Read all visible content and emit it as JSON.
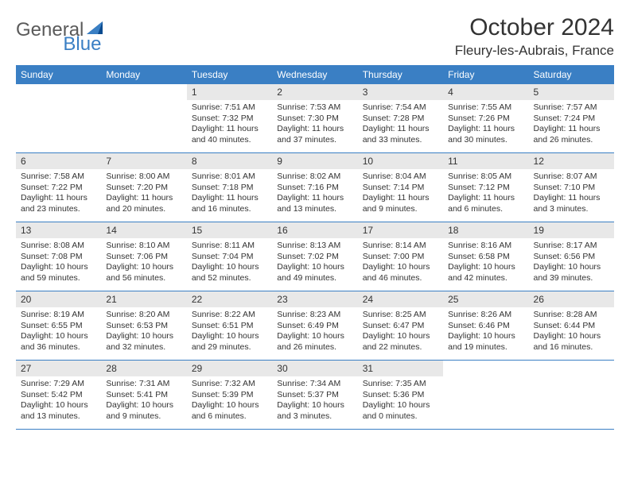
{
  "logo": {
    "text1": "General",
    "text2": "Blue"
  },
  "header": {
    "month_title": "October 2024",
    "location": "Fleury-les-Aubrais, France"
  },
  "colors": {
    "header_bg": "#3a7fc4",
    "day_num_bg": "#e8e8e8",
    "text": "#333333",
    "logo_gray": "#5a5a5a",
    "logo_blue": "#3a7fc4"
  },
  "weekdays": [
    "Sunday",
    "Monday",
    "Tuesday",
    "Wednesday",
    "Thursday",
    "Friday",
    "Saturday"
  ],
  "weeks": [
    [
      {
        "empty": true
      },
      {
        "empty": true
      },
      {
        "num": "1",
        "sunrise": "Sunrise: 7:51 AM",
        "sunset": "Sunset: 7:32 PM",
        "daylight1": "Daylight: 11 hours",
        "daylight2": "and 40 minutes."
      },
      {
        "num": "2",
        "sunrise": "Sunrise: 7:53 AM",
        "sunset": "Sunset: 7:30 PM",
        "daylight1": "Daylight: 11 hours",
        "daylight2": "and 37 minutes."
      },
      {
        "num": "3",
        "sunrise": "Sunrise: 7:54 AM",
        "sunset": "Sunset: 7:28 PM",
        "daylight1": "Daylight: 11 hours",
        "daylight2": "and 33 minutes."
      },
      {
        "num": "4",
        "sunrise": "Sunrise: 7:55 AM",
        "sunset": "Sunset: 7:26 PM",
        "daylight1": "Daylight: 11 hours",
        "daylight2": "and 30 minutes."
      },
      {
        "num": "5",
        "sunrise": "Sunrise: 7:57 AM",
        "sunset": "Sunset: 7:24 PM",
        "daylight1": "Daylight: 11 hours",
        "daylight2": "and 26 minutes."
      }
    ],
    [
      {
        "num": "6",
        "sunrise": "Sunrise: 7:58 AM",
        "sunset": "Sunset: 7:22 PM",
        "daylight1": "Daylight: 11 hours",
        "daylight2": "and 23 minutes."
      },
      {
        "num": "7",
        "sunrise": "Sunrise: 8:00 AM",
        "sunset": "Sunset: 7:20 PM",
        "daylight1": "Daylight: 11 hours",
        "daylight2": "and 20 minutes."
      },
      {
        "num": "8",
        "sunrise": "Sunrise: 8:01 AM",
        "sunset": "Sunset: 7:18 PM",
        "daylight1": "Daylight: 11 hours",
        "daylight2": "and 16 minutes."
      },
      {
        "num": "9",
        "sunrise": "Sunrise: 8:02 AM",
        "sunset": "Sunset: 7:16 PM",
        "daylight1": "Daylight: 11 hours",
        "daylight2": "and 13 minutes."
      },
      {
        "num": "10",
        "sunrise": "Sunrise: 8:04 AM",
        "sunset": "Sunset: 7:14 PM",
        "daylight1": "Daylight: 11 hours",
        "daylight2": "and 9 minutes."
      },
      {
        "num": "11",
        "sunrise": "Sunrise: 8:05 AM",
        "sunset": "Sunset: 7:12 PM",
        "daylight1": "Daylight: 11 hours",
        "daylight2": "and 6 minutes."
      },
      {
        "num": "12",
        "sunrise": "Sunrise: 8:07 AM",
        "sunset": "Sunset: 7:10 PM",
        "daylight1": "Daylight: 11 hours",
        "daylight2": "and 3 minutes."
      }
    ],
    [
      {
        "num": "13",
        "sunrise": "Sunrise: 8:08 AM",
        "sunset": "Sunset: 7:08 PM",
        "daylight1": "Daylight: 10 hours",
        "daylight2": "and 59 minutes."
      },
      {
        "num": "14",
        "sunrise": "Sunrise: 8:10 AM",
        "sunset": "Sunset: 7:06 PM",
        "daylight1": "Daylight: 10 hours",
        "daylight2": "and 56 minutes."
      },
      {
        "num": "15",
        "sunrise": "Sunrise: 8:11 AM",
        "sunset": "Sunset: 7:04 PM",
        "daylight1": "Daylight: 10 hours",
        "daylight2": "and 52 minutes."
      },
      {
        "num": "16",
        "sunrise": "Sunrise: 8:13 AM",
        "sunset": "Sunset: 7:02 PM",
        "daylight1": "Daylight: 10 hours",
        "daylight2": "and 49 minutes."
      },
      {
        "num": "17",
        "sunrise": "Sunrise: 8:14 AM",
        "sunset": "Sunset: 7:00 PM",
        "daylight1": "Daylight: 10 hours",
        "daylight2": "and 46 minutes."
      },
      {
        "num": "18",
        "sunrise": "Sunrise: 8:16 AM",
        "sunset": "Sunset: 6:58 PM",
        "daylight1": "Daylight: 10 hours",
        "daylight2": "and 42 minutes."
      },
      {
        "num": "19",
        "sunrise": "Sunrise: 8:17 AM",
        "sunset": "Sunset: 6:56 PM",
        "daylight1": "Daylight: 10 hours",
        "daylight2": "and 39 minutes."
      }
    ],
    [
      {
        "num": "20",
        "sunrise": "Sunrise: 8:19 AM",
        "sunset": "Sunset: 6:55 PM",
        "daylight1": "Daylight: 10 hours",
        "daylight2": "and 36 minutes."
      },
      {
        "num": "21",
        "sunrise": "Sunrise: 8:20 AM",
        "sunset": "Sunset: 6:53 PM",
        "daylight1": "Daylight: 10 hours",
        "daylight2": "and 32 minutes."
      },
      {
        "num": "22",
        "sunrise": "Sunrise: 8:22 AM",
        "sunset": "Sunset: 6:51 PM",
        "daylight1": "Daylight: 10 hours",
        "daylight2": "and 29 minutes."
      },
      {
        "num": "23",
        "sunrise": "Sunrise: 8:23 AM",
        "sunset": "Sunset: 6:49 PM",
        "daylight1": "Daylight: 10 hours",
        "daylight2": "and 26 minutes."
      },
      {
        "num": "24",
        "sunrise": "Sunrise: 8:25 AM",
        "sunset": "Sunset: 6:47 PM",
        "daylight1": "Daylight: 10 hours",
        "daylight2": "and 22 minutes."
      },
      {
        "num": "25",
        "sunrise": "Sunrise: 8:26 AM",
        "sunset": "Sunset: 6:46 PM",
        "daylight1": "Daylight: 10 hours",
        "daylight2": "and 19 minutes."
      },
      {
        "num": "26",
        "sunrise": "Sunrise: 8:28 AM",
        "sunset": "Sunset: 6:44 PM",
        "daylight1": "Daylight: 10 hours",
        "daylight2": "and 16 minutes."
      }
    ],
    [
      {
        "num": "27",
        "sunrise": "Sunrise: 7:29 AM",
        "sunset": "Sunset: 5:42 PM",
        "daylight1": "Daylight: 10 hours",
        "daylight2": "and 13 minutes."
      },
      {
        "num": "28",
        "sunrise": "Sunrise: 7:31 AM",
        "sunset": "Sunset: 5:41 PM",
        "daylight1": "Daylight: 10 hours",
        "daylight2": "and 9 minutes."
      },
      {
        "num": "29",
        "sunrise": "Sunrise: 7:32 AM",
        "sunset": "Sunset: 5:39 PM",
        "daylight1": "Daylight: 10 hours",
        "daylight2": "and 6 minutes."
      },
      {
        "num": "30",
        "sunrise": "Sunrise: 7:34 AM",
        "sunset": "Sunset: 5:37 PM",
        "daylight1": "Daylight: 10 hours",
        "daylight2": "and 3 minutes."
      },
      {
        "num": "31",
        "sunrise": "Sunrise: 7:35 AM",
        "sunset": "Sunset: 5:36 PM",
        "daylight1": "Daylight: 10 hours",
        "daylight2": "and 0 minutes."
      },
      {
        "empty": true
      },
      {
        "empty": true
      }
    ]
  ]
}
